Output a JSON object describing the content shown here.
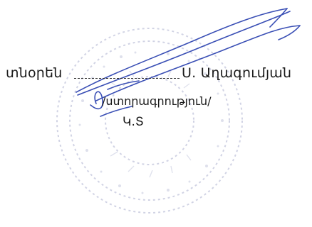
{
  "document": {
    "title_left": "տնօրեն",
    "signatory_name": "Ս. Աղագումյան",
    "signature_caption": "/ստորագրություն/",
    "seal_mark": "Կ.Տ"
  },
  "colors": {
    "signature_ink": "#3a4fb5",
    "stamp_ink": "#c9cce0",
    "text": "#1a1a1a"
  }
}
